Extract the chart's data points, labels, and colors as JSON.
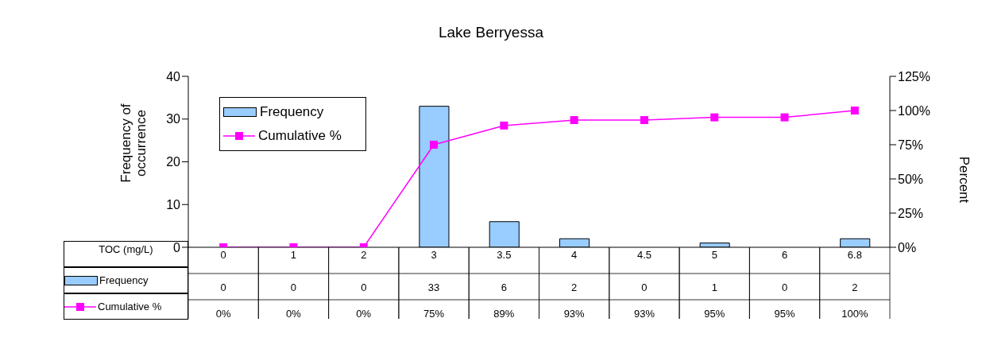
{
  "chart_data": {
    "type": "bar",
    "title": "Lake Berryessa",
    "xlabel": "TOC (mg/L)",
    "ylabel": "Frequency of occurrence",
    "y2label": "Percent",
    "categories": [
      "0",
      "1",
      "2",
      "3",
      "3.5",
      "4",
      "4.5",
      "5",
      "6",
      "6.8"
    ],
    "series": [
      {
        "name": "Frequency",
        "color": "#99ccff",
        "values": [
          0,
          0,
          0,
          33,
          6,
          2,
          0,
          1,
          0,
          2
        ],
        "value_labels": [
          "0",
          "0",
          "0",
          "33",
          "6",
          "2",
          "0",
          "1",
          "0",
          "2"
        ]
      },
      {
        "name": "Cumulative %",
        "type": "line",
        "axis": "y2",
        "color": "#ff00ff",
        "marker": "square",
        "values": [
          0,
          0,
          0,
          75,
          89,
          93,
          93,
          95,
          95,
          100
        ],
        "value_labels": [
          "0%",
          "0%",
          "0%",
          "75%",
          "89%",
          "93%",
          "93%",
          "95%",
          "95%",
          "100%"
        ]
      }
    ],
    "ylim": [
      0,
      40
    ],
    "yticks": [
      0,
      10,
      20,
      30,
      40
    ],
    "y2lim": [
      0,
      125
    ],
    "y2ticks": [
      {
        "value": 0,
        "label": "0%"
      },
      {
        "value": 25,
        "label": "25%"
      },
      {
        "value": 50,
        "label": "50%"
      },
      {
        "value": 75,
        "label": "75%"
      },
      {
        "value": 100,
        "label": "100%"
      },
      {
        "value": 125,
        "label": "125%"
      }
    ],
    "legend": "top left"
  }
}
